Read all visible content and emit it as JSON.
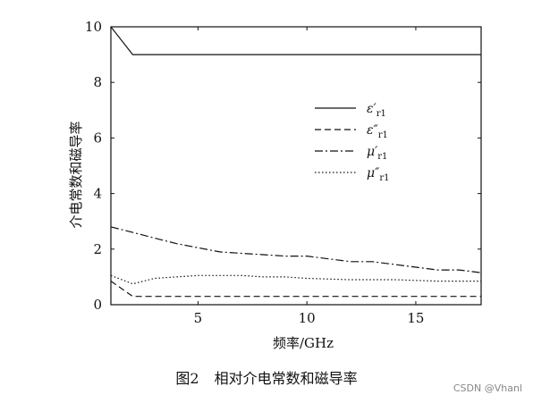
{
  "chart_data": {
    "type": "line",
    "xlabel": "频率/GHz",
    "ylabel": "介电常数和磁导率",
    "xlim": [
      1,
      18
    ],
    "ylim": [
      0,
      10
    ],
    "x_ticks": [
      5,
      10,
      15
    ],
    "y_ticks": [
      0,
      2,
      4,
      6,
      8,
      10
    ],
    "legend_position": "upper-right",
    "series": [
      {
        "name": "ε′r1",
        "name_main": "ε′",
        "name_sub": "r1",
        "style": "solid",
        "x": [
          1,
          2,
          4,
          6,
          8,
          10,
          12,
          14,
          16,
          18
        ],
        "y": [
          10,
          9,
          9,
          9,
          9,
          9,
          9,
          9,
          9,
          9
        ]
      },
      {
        "name": "ε″r1",
        "name_main": "ε″",
        "name_sub": "r1",
        "style": "dashed",
        "x": [
          1,
          2,
          4,
          6,
          8,
          10,
          12,
          14,
          16,
          18
        ],
        "y": [
          0.85,
          0.3,
          0.3,
          0.3,
          0.3,
          0.3,
          0.3,
          0.3,
          0.3,
          0.3
        ]
      },
      {
        "name": "μ′r1",
        "name_main": "μ′",
        "name_sub": "r1",
        "style": "dashdot",
        "x": [
          1,
          2,
          3,
          4,
          5,
          6,
          7,
          8,
          9,
          10,
          11,
          12,
          13,
          14,
          15,
          16,
          17,
          18
        ],
        "y": [
          2.8,
          2.6,
          2.4,
          2.2,
          2.05,
          1.9,
          1.85,
          1.8,
          1.75,
          1.75,
          1.65,
          1.55,
          1.55,
          1.45,
          1.35,
          1.25,
          1.25,
          1.15
        ]
      },
      {
        "name": "μ″r1",
        "name_main": "μ″",
        "name_sub": "r1",
        "style": "dotted",
        "x": [
          1,
          2,
          3,
          4,
          5,
          6,
          7,
          8,
          9,
          10,
          12,
          14,
          16,
          18
        ],
        "y": [
          1.05,
          0.75,
          0.95,
          1.0,
          1.05,
          1.05,
          1.05,
          1.0,
          1.0,
          0.95,
          0.9,
          0.9,
          0.85,
          0.85
        ]
      }
    ]
  },
  "caption": {
    "figure_number": "图2",
    "title": "相对介电常数和磁导率"
  },
  "watermark": "CSDN @Vhanl"
}
